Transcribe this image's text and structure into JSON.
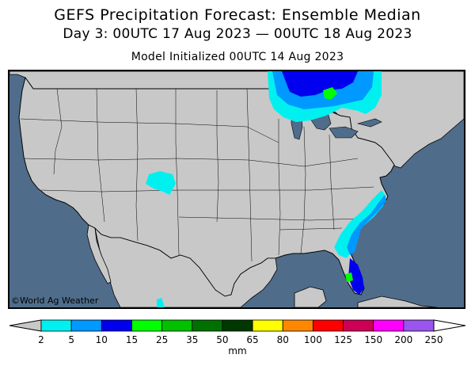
{
  "title": "GEFS Precipitation Forecast: Ensemble Median",
  "subtitle": "Day 3: 00UTC 17 Aug 2023 — 00UTC 18 Aug 2023",
  "init_line": "Model Initialized 00UTC 14 Aug 2023",
  "credit": "©World Ag Weather",
  "legend": {
    "units": "mm",
    "ticks": [
      "2",
      "5",
      "10",
      "15",
      "25",
      "35",
      "50",
      "65",
      "80",
      "100",
      "125",
      "150",
      "200",
      "250"
    ],
    "colors": [
      "#00f0f0",
      "#0099ff",
      "#0000ee",
      "#00ff00",
      "#00c000",
      "#007000",
      "#003800",
      "#ffff00",
      "#ff8800",
      "#ff0000",
      "#cc0055",
      "#ff00ff",
      "#9955ee"
    ],
    "below_color": "#c8c8c8",
    "above_color": "#ffffff"
  },
  "map_colors": {
    "water": "#4f6d8b",
    "land": "#c8c8c8",
    "border": "#000000"
  }
}
